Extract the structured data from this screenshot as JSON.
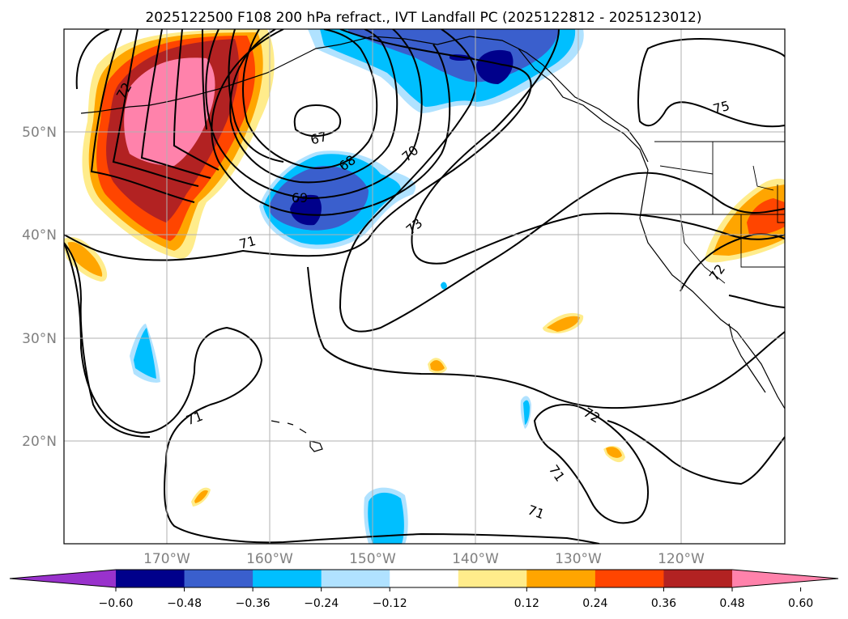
{
  "title": "2025122500 F108 200 hPa refract., IVT Landfall PC (2025122812 - 2025123012)",
  "latitude_labels": [
    "50°N",
    "40°N",
    "30°N",
    "20°N"
  ],
  "longitude_labels": [
    "170°W",
    "160°W",
    "150°W",
    "140°W",
    "130°W",
    "120°W"
  ],
  "colorbar": {
    "ticks": [
      "−0.60",
      "−0.48",
      "−0.36",
      "−0.24",
      "−0.12",
      "0.12",
      "0.24",
      "0.36",
      "0.48",
      "0.60"
    ],
    "colors": [
      "#9932cc",
      "#00008b",
      "#3a5fcd",
      "#00bfff",
      "#b0e2ff",
      "#ffffff",
      "#ffec8b",
      "#ffa500",
      "#ff4500",
      "#b22222",
      "#ff82ab"
    ]
  },
  "contour_labels": [
    "72",
    "67",
    "68",
    "69",
    "70",
    "71",
    "73",
    "75",
    "72",
    "71",
    "72",
    "71",
    "71"
  ]
}
